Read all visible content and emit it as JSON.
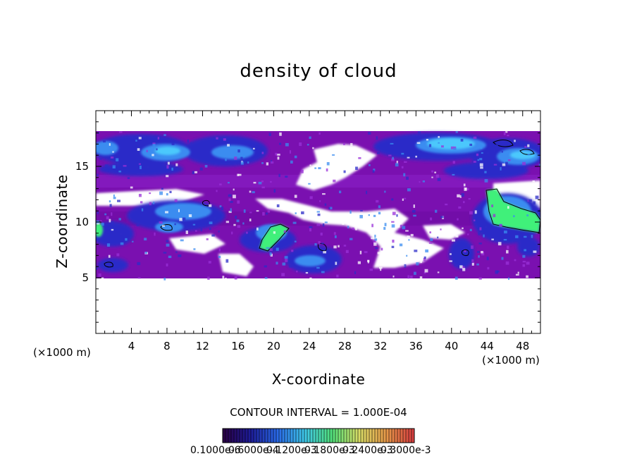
{
  "chart_data": {
    "type": "heatmap",
    "title": "density of cloud",
    "xlabel": "X-coordinate",
    "ylabel": "Z-coordinate",
    "x_unit": "(×1000 m)",
    "y_unit": "(×1000 m)",
    "xlim": [
      0,
      50
    ],
    "ylim": [
      0,
      20
    ],
    "x_ticks": [
      4,
      8,
      12,
      16,
      20,
      24,
      28,
      32,
      36,
      40,
      44,
      48
    ],
    "x_tick_labels": [
      "4",
      "8",
      "12",
      "16",
      "20",
      "24",
      "28",
      "32",
      "36",
      "40",
      "44",
      "48"
    ],
    "y_ticks": [
      5,
      10,
      15
    ],
    "y_tick_labels": [
      "5",
      "10",
      "15"
    ],
    "contour_interval_text": "CONTOUR INTERVAL = 1.000E-04",
    "colorbar_labels": [
      "0.1000e-6",
      "0.6000e-4",
      "0.1200e-3",
      "0.1800e-3",
      "0.2400e-3",
      "0.3000e-3"
    ],
    "colorbar_colors": [
      "#2a0047",
      "#1d1d9a",
      "#2a6be8",
      "#3fc8e8",
      "#52e07a",
      "#d8dc66",
      "#e79a4a",
      "#d84040"
    ],
    "cloud_layer_z": [
      5,
      18
    ],
    "colors": {
      "background_cloud": "#7a10b0",
      "low_density": "#2c2cc8",
      "mid_density": "#3a8cf0",
      "high_density": "#3ff07a",
      "clear_sky": "#ffffff"
    }
  }
}
